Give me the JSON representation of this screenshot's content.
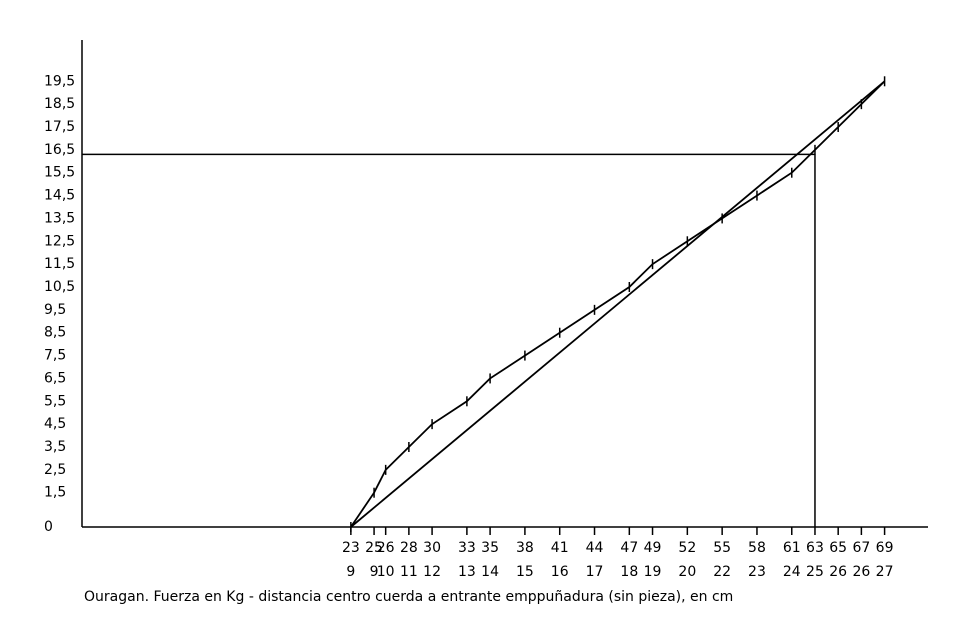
{
  "chart_data": {
    "type": "line",
    "caption": "Ouragan. Fuerza en Kg - distancia centro cuerda a entrante emppuñadura (sin pieza), en cm",
    "xlim": [
      0,
      73
    ],
    "ylim": [
      0,
      21
    ],
    "xticks": [
      23,
      25,
      26,
      28,
      30,
      33,
      35,
      38,
      41,
      44,
      47,
      49,
      52,
      55,
      58,
      61,
      63,
      65,
      67,
      69
    ],
    "x_second_labels": [
      9,
      9,
      10,
      11,
      12,
      13,
      14,
      15,
      16,
      17,
      18,
      19,
      20,
      22,
      23,
      24,
      25,
      26,
      26,
      27
    ],
    "yticks": [
      0,
      {
        "value": 1.5,
        "label": "1,5"
      },
      {
        "value": 2.5,
        "label": "2,5"
      },
      {
        "value": 3.5,
        "label": "3,5"
      },
      {
        "value": 4.5,
        "label": "4,5"
      },
      {
        "value": 5.5,
        "label": "5,5"
      },
      {
        "value": 6.5,
        "label": "6,5"
      },
      {
        "value": 7.5,
        "label": "7,5"
      },
      {
        "value": 8.5,
        "label": "8,5"
      },
      {
        "value": 9.5,
        "label": "9,5"
      },
      {
        "value": 10.5,
        "label": "10,5"
      },
      {
        "value": 11.5,
        "label": "11,5"
      },
      {
        "value": 12.5,
        "label": "12,5"
      },
      {
        "value": 13.5,
        "label": "13,5"
      },
      {
        "value": 14.5,
        "label": "14,5"
      },
      {
        "value": 15.5,
        "label": "15,5"
      },
      {
        "value": 16.5,
        "label": "16,5"
      },
      {
        "value": 17.5,
        "label": "17,5"
      },
      {
        "value": 18.5,
        "label": "18,5"
      },
      {
        "value": 19.5,
        "label": "19,5"
      }
    ],
    "series": [
      {
        "x": [
          23,
          25,
          26,
          28,
          30,
          33,
          35,
          38,
          41,
          44,
          47,
          49,
          52,
          55,
          58,
          61,
          63,
          65,
          67,
          69
        ],
        "values": [
          0,
          1.5,
          2.5,
          3.5,
          4.5,
          5.5,
          6.5,
          7.5,
          8.5,
          9.5,
          10.5,
          11.5,
          12.5,
          13.5,
          14.5,
          15.5,
          16.5,
          17.5,
          18.5,
          19.5
        ],
        "color": "#000000",
        "point_ticks": true
      },
      {
        "x": [
          23,
          69
        ],
        "values": [
          0,
          19.5
        ],
        "color": "#000000",
        "point_ticks": false
      }
    ],
    "reference": {
      "x": 63,
      "y": 16.3
    }
  }
}
